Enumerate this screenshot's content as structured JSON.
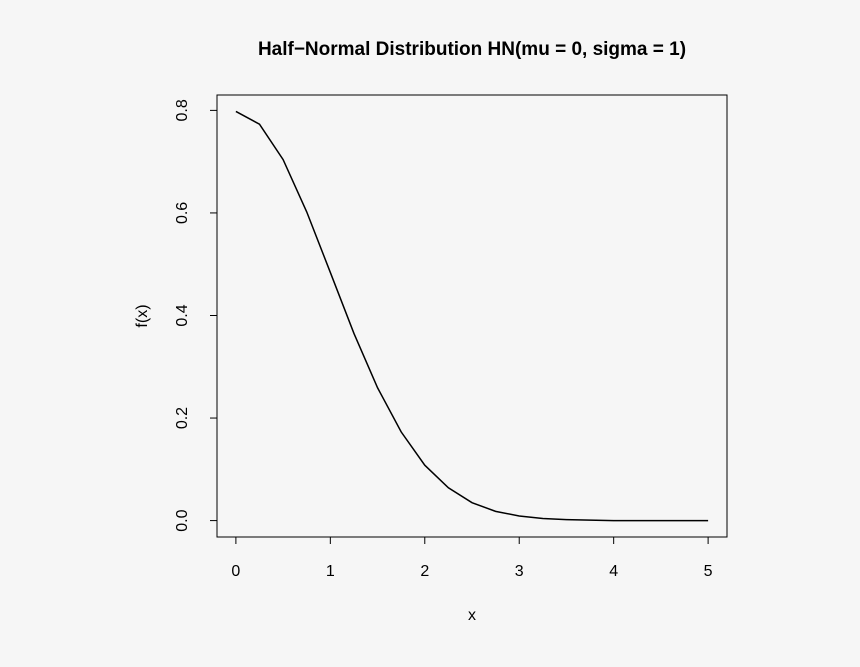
{
  "chart_data": {
    "type": "line",
    "title": "Half−Normal Distribution HN(mu = 0, sigma = 1)",
    "x_label": "x",
    "y_label": "f(x)",
    "x": [
      0,
      0.25,
      0.5,
      0.75,
      1,
      1.25,
      1.5,
      1.75,
      2,
      2.25,
      2.5,
      2.75,
      3,
      3.25,
      3.5,
      3.75,
      4,
      4.25,
      4.5,
      4.75,
      5
    ],
    "values": [
      0.798,
      0.773,
      0.704,
      0.602,
      0.484,
      0.365,
      0.259,
      0.173,
      0.108,
      0.064,
      0.035,
      0.018,
      0.009,
      0.004,
      0.002,
      0.001,
      0,
      0,
      0,
      0,
      0
    ],
    "color": "#000000",
    "xlim": [
      -0.2,
      5.2
    ],
    "ylim": [
      -0.032,
      0.83
    ],
    "xticks": [
      0,
      1,
      2,
      3,
      4,
      5
    ],
    "yticks": [
      {
        "value": 0,
        "label": "0.0"
      },
      0.2,
      0.4,
      0.6,
      0.8
    ]
  }
}
